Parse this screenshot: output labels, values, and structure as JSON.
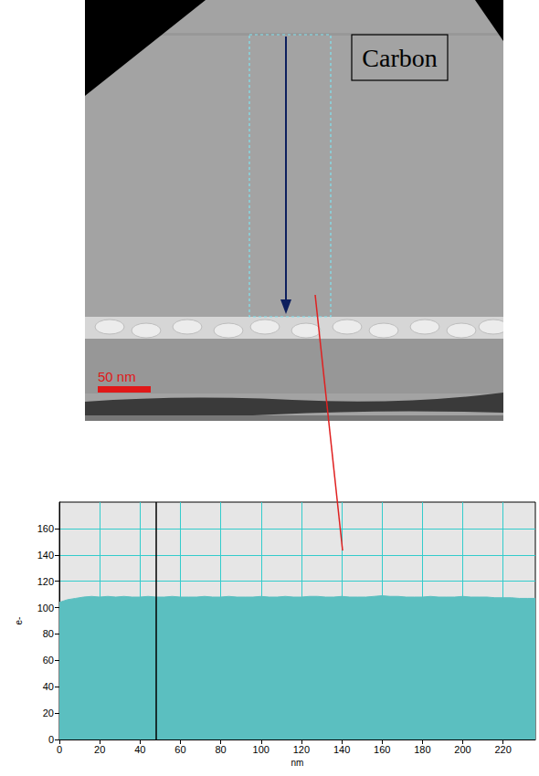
{
  "micrograph": {
    "label": "Carbon",
    "scale_bar": {
      "label": "50 nm"
    }
  },
  "chart_data": {
    "type": "area",
    "color": "#5bbfc0",
    "x_label": "nm",
    "y_label": "e-",
    "x": [
      0,
      4,
      8,
      12,
      16,
      20,
      24,
      28,
      32,
      36,
      40,
      44,
      48,
      52,
      56,
      60,
      64,
      68,
      72,
      76,
      80,
      84,
      88,
      92,
      96,
      100,
      104,
      108,
      112,
      116,
      120,
      124,
      128,
      132,
      136,
      140,
      144,
      148,
      152,
      156,
      160,
      164,
      168,
      172,
      176,
      180,
      184,
      188,
      192,
      196,
      200,
      204,
      208,
      212,
      216,
      220,
      224,
      228,
      232,
      236
    ],
    "values": [
      104,
      106,
      107,
      108,
      108.5,
      108,
      108.5,
      108,
      108.5,
      108,
      108,
      108.5,
      108,
      108,
      108.5,
      108,
      108,
      108,
      108.5,
      108,
      108,
      108.5,
      108,
      108,
      108,
      108.5,
      108,
      108,
      108.5,
      108,
      108,
      108.5,
      108.5,
      108,
      108,
      108.5,
      108,
      108,
      108,
      108.5,
      109,
      108.5,
      108.5,
      108,
      108,
      108,
      108.5,
      108,
      108,
      108,
      108.5,
      108,
      108,
      108,
      107.5,
      107.5,
      107.5,
      107,
      107,
      107
    ],
    "cursor_x": 48,
    "xlim": [
      0,
      236
    ],
    "xticks": [
      0,
      20,
      40,
      60,
      80,
      100,
      120,
      140,
      160,
      180,
      200,
      220
    ],
    "ylim": [
      0,
      180
    ],
    "yticks": [
      0,
      20,
      40,
      60,
      80,
      100,
      120,
      140,
      160
    ],
    "grid": true
  }
}
